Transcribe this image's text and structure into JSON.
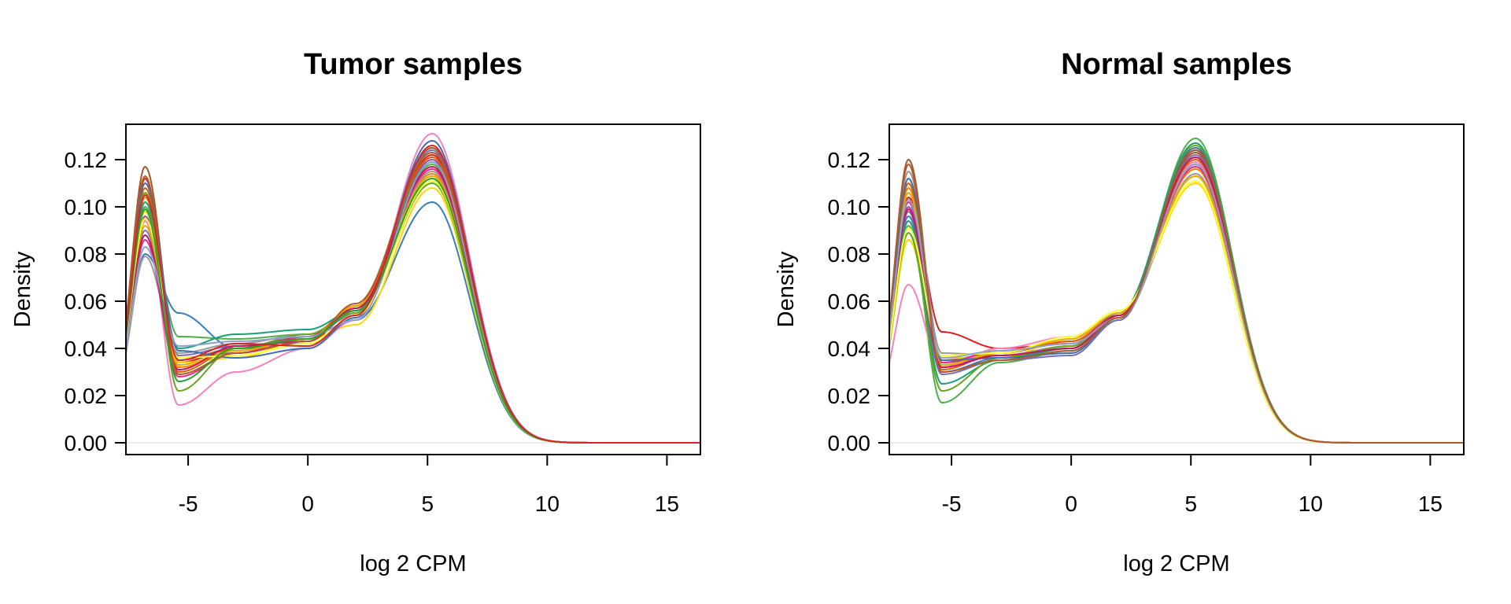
{
  "chart_data": [
    {
      "type": "line",
      "title": "Tumor samples",
      "xlabel": "log 2 CPM",
      "ylabel": "Density",
      "xlim": [
        -7.6,
        16.4
      ],
      "ylim": [
        -0.005,
        0.135
      ],
      "xticks": [
        -5,
        0,
        5,
        10,
        15
      ],
      "yticks": [
        0.0,
        0.02,
        0.04,
        0.06,
        0.08,
        0.1,
        0.12
      ],
      "xtick_labels": [
        "-5",
        "0",
        "5",
        "10",
        "15"
      ],
      "ytick_labels": [
        "0.00",
        "0.02",
        "0.04",
        "0.06",
        "0.08",
        "0.10",
        "0.12"
      ],
      "zero_reference_line": true,
      "grid": false,
      "series": [
        {
          "color": "#E41A1C",
          "values": [
            0.112,
            0.034,
            0.04,
            0.044,
            0.055,
            0.122
          ]
        },
        {
          "color": "#377EB8",
          "values": [
            0.08,
            0.055,
            0.04,
            0.042,
            0.052,
            0.102
          ]
        },
        {
          "color": "#4DAF4A",
          "values": [
            0.1,
            0.045,
            0.044,
            0.046,
            0.056,
            0.118
          ]
        },
        {
          "color": "#984EA3",
          "values": [
            0.096,
            0.036,
            0.038,
            0.043,
            0.056,
            0.12
          ]
        },
        {
          "color": "#FF7F00",
          "values": [
            0.104,
            0.032,
            0.039,
            0.045,
            0.058,
            0.114
          ]
        },
        {
          "color": "#FFD700",
          "values": [
            0.098,
            0.034,
            0.036,
            0.044,
            0.05,
            0.108
          ]
        },
        {
          "color": "#A65628",
          "values": [
            0.117,
            0.035,
            0.04,
            0.045,
            0.057,
            0.125
          ]
        },
        {
          "color": "#F781BF",
          "values": [
            0.094,
            0.016,
            0.03,
            0.04,
            0.052,
            0.131
          ]
        },
        {
          "color": "#999999",
          "values": [
            0.079,
            0.038,
            0.042,
            0.046,
            0.054,
            0.115
          ]
        },
        {
          "color": "#1B9E77",
          "values": [
            0.102,
            0.04,
            0.046,
            0.048,
            0.056,
            0.119
          ]
        },
        {
          "color": "#D95F02",
          "values": [
            0.108,
            0.03,
            0.04,
            0.044,
            0.058,
            0.121
          ]
        },
        {
          "color": "#7570B3",
          "values": [
            0.09,
            0.037,
            0.041,
            0.044,
            0.055,
            0.124
          ]
        },
        {
          "color": "#E7298A",
          "values": [
            0.086,
            0.028,
            0.038,
            0.045,
            0.056,
            0.116
          ]
        },
        {
          "color": "#66A61E",
          "values": [
            0.106,
            0.022,
            0.04,
            0.046,
            0.055,
            0.11
          ]
        },
        {
          "color": "#E6AB02",
          "values": [
            0.092,
            0.033,
            0.039,
            0.044,
            0.058,
            0.113
          ]
        },
        {
          "color": "#3F6FB0",
          "values": [
            0.11,
            0.039,
            0.036,
            0.04,
            0.053,
            0.128
          ]
        },
        {
          "color": "#C2185B",
          "values": [
            0.088,
            0.031,
            0.041,
            0.043,
            0.057,
            0.117
          ]
        },
        {
          "color": "#FFFF33",
          "values": [
            0.095,
            0.036,
            0.037,
            0.042,
            0.054,
            0.111
          ]
        },
        {
          "color": "#8DA0CB",
          "values": [
            0.083,
            0.041,
            0.043,
            0.045,
            0.052,
            0.119
          ]
        },
        {
          "color": "#B15928",
          "values": [
            0.113,
            0.029,
            0.038,
            0.043,
            0.059,
            0.123
          ]
        },
        {
          "color": "#2CA02C",
          "values": [
            0.099,
            0.026,
            0.04,
            0.044,
            0.056,
            0.112
          ]
        },
        {
          "color": "#D62728",
          "values": [
            0.105,
            0.035,
            0.042,
            0.041,
            0.054,
            0.126
          ]
        }
      ]
    },
    {
      "type": "line",
      "title": "Normal samples",
      "xlabel": "log 2 CPM",
      "ylabel": "Density",
      "xlim": [
        -7.6,
        16.4
      ],
      "ylim": [
        -0.005,
        0.135
      ],
      "xticks": [
        -5,
        0,
        5,
        10,
        15
      ],
      "yticks": [
        0.0,
        0.02,
        0.04,
        0.06,
        0.08,
        0.1,
        0.12
      ],
      "xtick_labels": [
        "-5",
        "0",
        "5",
        "10",
        "15"
      ],
      "ytick_labels": [
        "0.00",
        "0.02",
        "0.04",
        "0.06",
        "0.08",
        "0.10",
        "0.12"
      ],
      "zero_reference_line": true,
      "grid": false,
      "series": [
        {
          "color": "#E41A1C",
          "values": [
            0.104,
            0.047,
            0.04,
            0.042,
            0.053,
            0.118
          ]
        },
        {
          "color": "#377EB8",
          "values": [
            0.096,
            0.03,
            0.036,
            0.04,
            0.054,
            0.124
          ]
        },
        {
          "color": "#4DAF4A",
          "values": [
            0.092,
            0.017,
            0.034,
            0.039,
            0.052,
            0.129
          ]
        },
        {
          "color": "#984EA3",
          "values": [
            0.1,
            0.033,
            0.037,
            0.041,
            0.055,
            0.121
          ]
        },
        {
          "color": "#FF7F00",
          "values": [
            0.108,
            0.035,
            0.038,
            0.043,
            0.054,
            0.116
          ]
        },
        {
          "color": "#FFD700",
          "values": [
            0.086,
            0.036,
            0.036,
            0.044,
            0.055,
            0.11
          ]
        },
        {
          "color": "#A65628",
          "values": [
            0.12,
            0.034,
            0.037,
            0.04,
            0.054,
            0.123
          ]
        },
        {
          "color": "#F781BF",
          "values": [
            0.067,
            0.032,
            0.04,
            0.045,
            0.053,
            0.119
          ]
        },
        {
          "color": "#999999",
          "values": [
            0.115,
            0.038,
            0.037,
            0.041,
            0.053,
            0.114
          ]
        },
        {
          "color": "#1B9E77",
          "values": [
            0.094,
            0.025,
            0.035,
            0.04,
            0.055,
            0.127
          ]
        },
        {
          "color": "#D95F02",
          "values": [
            0.11,
            0.031,
            0.038,
            0.043,
            0.054,
            0.12
          ]
        },
        {
          "color": "#7570B3",
          "values": [
            0.098,
            0.029,
            0.035,
            0.037,
            0.052,
            0.122
          ]
        },
        {
          "color": "#E7298A",
          "values": [
            0.102,
            0.034,
            0.039,
            0.042,
            0.054,
            0.117
          ]
        },
        {
          "color": "#66A61E",
          "values": [
            0.089,
            0.022,
            0.036,
            0.041,
            0.053,
            0.126
          ]
        },
        {
          "color": "#E6AB02",
          "values": [
            0.106,
            0.033,
            0.038,
            0.044,
            0.055,
            0.113
          ]
        },
        {
          "color": "#3F6FB0",
          "values": [
            0.112,
            0.035,
            0.036,
            0.038,
            0.053,
            0.125
          ]
        },
        {
          "color": "#C2185B",
          "values": [
            0.099,
            0.032,
            0.037,
            0.04,
            0.054,
            0.121
          ]
        },
        {
          "color": "#FFFF33",
          "values": [
            0.091,
            0.037,
            0.038,
            0.045,
            0.056,
            0.111
          ]
        },
        {
          "color": "#8DA0CB",
          "values": [
            0.103,
            0.036,
            0.039,
            0.042,
            0.053,
            0.118
          ]
        },
        {
          "color": "#B15928",
          "values": [
            0.118,
            0.03,
            0.035,
            0.039,
            0.053,
            0.124
          ]
        }
      ]
    }
  ]
}
